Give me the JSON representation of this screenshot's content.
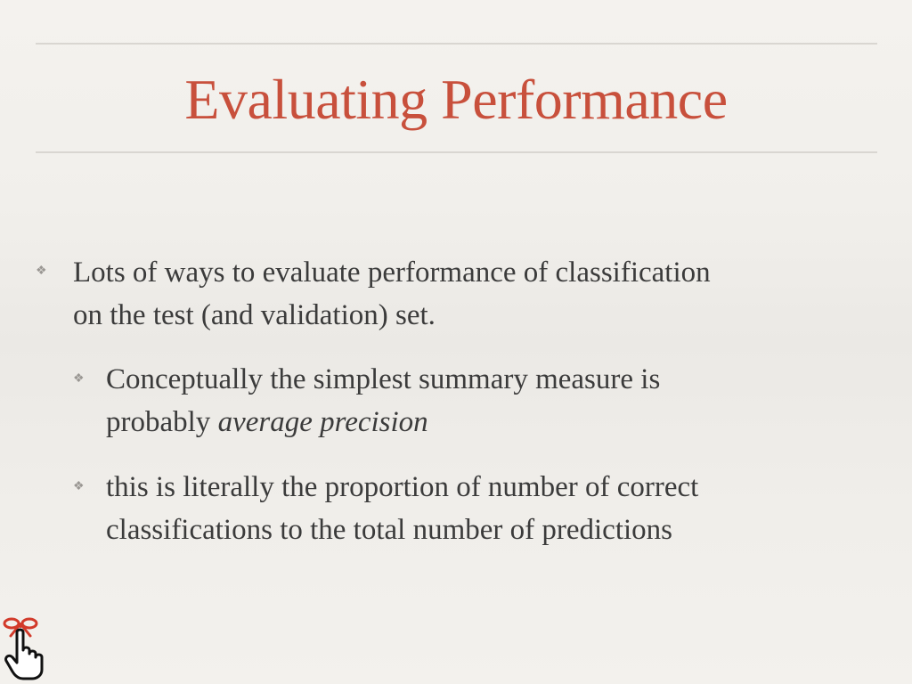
{
  "slide": {
    "title": "Evaluating Performance",
    "bullets": [
      {
        "line1": "Lots of ways to evaluate performance of classification",
        "line2": "on the test (and validation) set."
      },
      {
        "line1": "Conceptually the simplest summary measure is",
        "line2_prefix": "probably ",
        "line2_emphasis": "average precision"
      },
      {
        "line1": "this is literally the proportion of number of correct",
        "line2": "classifications to the total number of predictions"
      }
    ],
    "bullet_marker": "❖",
    "reminder_icon": "hand-with-string-icon"
  },
  "colors": {
    "title": "#c8503c",
    "text": "#3b3b3b",
    "rule": "#d9d6d1",
    "marker": "#9a9793",
    "icon_ribbon": "#d23a2a"
  }
}
